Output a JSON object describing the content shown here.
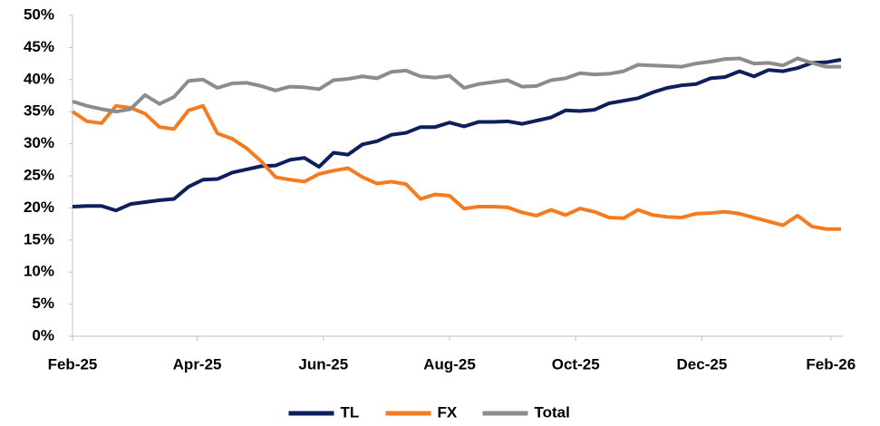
{
  "chart_data": {
    "type": "line",
    "x": [
      0,
      1,
      2,
      3,
      4,
      5,
      6,
      7,
      8,
      9,
      10,
      11,
      12,
      13,
      14,
      15,
      16,
      17,
      18,
      19,
      20,
      21,
      22,
      23,
      24,
      25,
      26,
      27,
      28,
      29,
      30,
      31,
      32,
      33,
      34,
      35,
      36,
      37,
      38,
      39,
      40,
      41,
      42,
      43,
      44,
      45,
      46,
      47,
      48,
      49,
      50,
      51,
      52,
      53
    ],
    "xlim": [
      0,
      53
    ],
    "xticks": [
      {
        "value": 0,
        "label": "Feb-25"
      },
      {
        "value": 8.6,
        "label": "Apr-25"
      },
      {
        "value": 17.3,
        "label": "Jun-25"
      },
      {
        "value": 26,
        "label": "Aug-25"
      },
      {
        "value": 34.7,
        "label": "Oct-25"
      },
      {
        "value": 43.4,
        "label": "Dec-25"
      },
      {
        "value": 52.3,
        "label": "Feb-26"
      }
    ],
    "ylim": [
      0,
      50
    ],
    "yticks": [
      {
        "value": 0,
        "label": "0%"
      },
      {
        "value": 5,
        "label": "5%"
      },
      {
        "value": 10,
        "label": "10%"
      },
      {
        "value": 15,
        "label": "15%"
      },
      {
        "value": 20,
        "label": "20%"
      },
      {
        "value": 25,
        "label": "25%"
      },
      {
        "value": 30,
        "label": "30%"
      },
      {
        "value": 35,
        "label": "35%"
      },
      {
        "value": 40,
        "label": "40%"
      },
      {
        "value": 45,
        "label": "45%"
      },
      {
        "value": 50,
        "label": "50%"
      }
    ],
    "grid": false,
    "legend": "bottom",
    "series": [
      {
        "name": "TL",
        "color": "#0d1f5c",
        "values": [
          20.2,
          20.3,
          20.3,
          19.6,
          20.6,
          20.9,
          21.2,
          21.4,
          23.3,
          24.4,
          24.5,
          25.5,
          26.0,
          26.5,
          26.6,
          27.5,
          27.8,
          26.4,
          28.6,
          28.3,
          29.9,
          30.4,
          31.4,
          31.7,
          32.6,
          32.6,
          33.3,
          32.7,
          33.4,
          33.4,
          33.5,
          33.1,
          33.6,
          34.1,
          35.2,
          35.1,
          35.3,
          36.3,
          36.7,
          37.1,
          38.0,
          38.7,
          39.1,
          39.3,
          40.2,
          40.4,
          41.3,
          40.5,
          41.5,
          41.3,
          41.8,
          42.6,
          42.7,
          43.1
        ]
      },
      {
        "name": "FX",
        "color": "#f47b20",
        "values": [
          35.0,
          33.5,
          33.2,
          35.9,
          35.6,
          34.7,
          32.6,
          32.3,
          35.2,
          35.9,
          31.6,
          30.8,
          29.3,
          27.3,
          24.8,
          24.4,
          24.1,
          25.3,
          25.8,
          26.2,
          24.8,
          23.8,
          24.1,
          23.7,
          21.4,
          22.1,
          21.9,
          19.9,
          20.2,
          20.2,
          20.1,
          19.3,
          18.8,
          19.7,
          18.9,
          19.9,
          19.4,
          18.5,
          18.4,
          19.7,
          18.9,
          18.6,
          18.5,
          19.1,
          19.2,
          19.4,
          19.1,
          18.5,
          17.9,
          17.3,
          18.8,
          17.1,
          16.7,
          16.7
        ]
      },
      {
        "name": "Total",
        "color": "#8c8c8c",
        "values": [
          36.6,
          35.9,
          35.4,
          35.0,
          35.4,
          37.6,
          36.2,
          37.3,
          39.8,
          40.0,
          38.7,
          39.4,
          39.5,
          39.0,
          38.3,
          38.9,
          38.8,
          38.5,
          39.9,
          40.1,
          40.5,
          40.2,
          41.2,
          41.4,
          40.5,
          40.3,
          40.6,
          38.7,
          39.3,
          39.6,
          39.9,
          38.9,
          39.0,
          39.9,
          40.2,
          41.0,
          40.8,
          40.9,
          41.3,
          42.3,
          42.2,
          42.1,
          42.0,
          42.5,
          42.8,
          43.2,
          43.3,
          42.5,
          42.6,
          42.2,
          43.3,
          42.6,
          42.0,
          42.0
        ]
      }
    ]
  }
}
